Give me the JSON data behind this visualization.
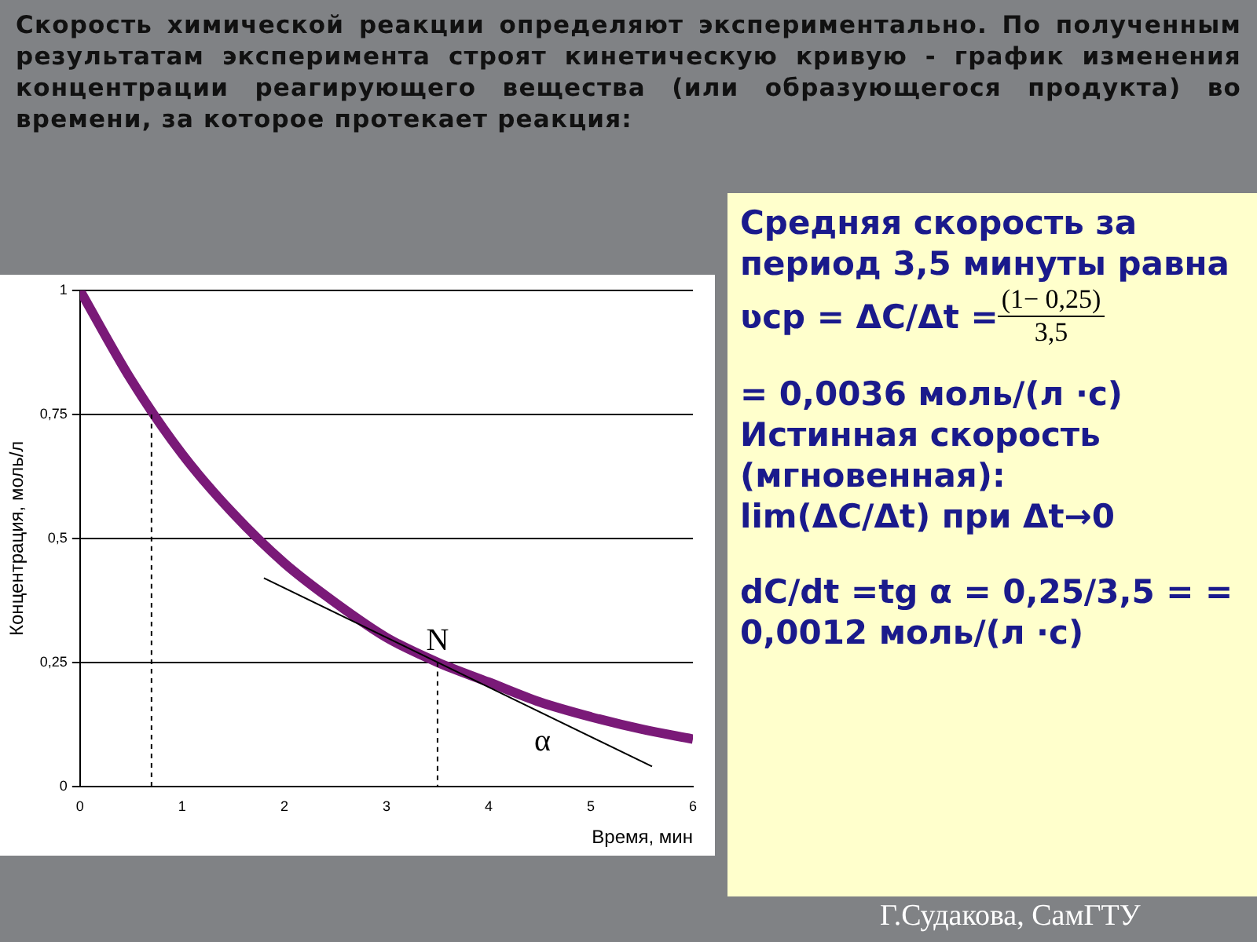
{
  "chart_data": {
    "type": "line",
    "title": "Скорость химической реакции определяют экспериментально. По полученным результатам эксперимента строят кинетическую кривую - график изменения концентрации реагирующего вещества (или образующегося продукта) во времени, за которое протекает реакция:",
    "xlabel": "Время, мин",
    "ylabel": "Концентрация, моль/л",
    "xlim": [
      0,
      6
    ],
    "xticks": [
      0,
      1,
      2,
      3,
      4,
      5,
      6
    ],
    "ylim": [
      0,
      1
    ],
    "yticks": [
      0,
      {
        "value": 0.25,
        "label": "0,25"
      },
      {
        "value": 0.5,
        "label": "0,5"
      },
      {
        "value": 0.75,
        "label": "0,75"
      },
      1
    ],
    "grid": "y",
    "series": [
      {
        "color": "#7a1a78",
        "x": [
          0,
          0.5,
          1,
          1.5,
          2,
          2.5,
          3,
          3.5,
          4,
          4.5,
          5,
          5.5,
          6
        ],
        "values": [
          1,
          0.82,
          0.67,
          0.55,
          0.45,
          0.37,
          0.3,
          0.25,
          0.21,
          0.17,
          0.14,
          0.115,
          0.095
        ]
      },
      {
        "color": "#000000",
        "x": [
          1.8,
          5.6
        ],
        "values": [
          0.42,
          0.04
        ]
      },
      {
        "color": "#000000",
        "x": [
          0.7,
          0.7
        ],
        "values": [
          0.75,
          0
        ],
        "line_style": "dashed"
      },
      {
        "color": "#000000",
        "x": [
          3.5,
          3.5
        ],
        "values": [
          0.25,
          0
        ],
        "line_style": "dashed"
      }
    ],
    "annotations": [
      "Средняя скорость за период 3,5 минуты равна",
      "ʋcp = ΔC/Δt =",
      "(1− 0,25)",
      "3,5",
      "= 0,0036  моль/(л ⋅с)",
      "Истинная скорость (мгновенная):",
      "lim(ΔC/Δt) при Δt→0",
      "dC/dt =tg α  = 0,25/3,5 =  = 0,0012 моль/(л ⋅с)",
      {
        "text": "N",
        "x": 3.5,
        "y": 0.25
      },
      "α",
      "Г.Судакова, СамГТУ"
    ]
  }
}
